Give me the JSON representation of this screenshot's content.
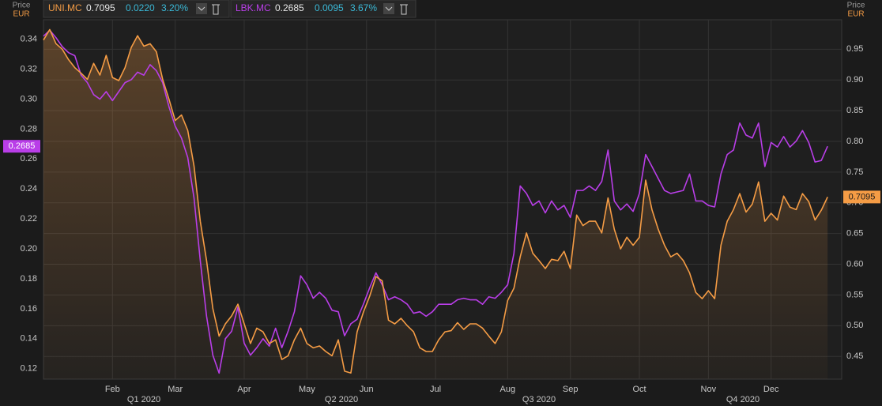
{
  "chart_data": {
    "type": "line",
    "y_axis_title": "Price",
    "y_axis_unit": "EUR",
    "y2_axis_title": "Price",
    "y2_axis_unit": "EUR",
    "x": [
      0,
      2,
      4,
      6,
      8,
      10,
      12,
      14,
      16,
      18,
      20,
      22,
      24,
      26,
      28,
      30,
      32,
      34,
      36,
      38,
      40,
      42,
      44,
      46,
      48,
      50,
      52,
      54,
      56,
      58,
      60,
      62,
      64,
      66,
      68,
      70,
      72,
      74,
      76,
      78,
      80,
      82,
      84,
      86,
      88,
      90,
      92,
      94,
      96,
      98,
      100,
      102,
      104,
      106,
      108,
      110,
      112,
      114,
      116,
      118,
      120,
      122,
      124,
      126,
      128,
      130,
      132,
      134,
      136,
      138,
      140,
      142,
      144,
      146,
      148,
      150,
      152,
      154,
      156,
      158,
      160,
      162,
      164,
      166,
      168,
      170,
      172,
      174,
      176,
      178,
      180,
      182,
      184,
      186,
      188,
      190,
      192,
      194,
      196,
      198,
      200,
      202,
      204,
      206,
      208,
      210,
      212,
      214,
      216,
      218,
      220,
      222,
      224,
      226,
      228,
      230,
      232,
      234,
      236,
      238,
      240,
      242,
      244,
      246,
      248,
      250
    ],
    "xlim": [
      0,
      254.5
    ],
    "xticks": [
      {
        "value": 22,
        "label": "Feb"
      },
      {
        "value": 42,
        "label": "Mar"
      },
      {
        "value": 64,
        "label": "Apr"
      },
      {
        "value": 84,
        "label": "May"
      },
      {
        "value": 103,
        "label": "Jun"
      },
      {
        "value": 125,
        "label": "Jul"
      },
      {
        "value": 148,
        "label": "Aug"
      },
      {
        "value": 168,
        "label": "Sep"
      },
      {
        "value": 190,
        "label": "Oct"
      },
      {
        "value": 212,
        "label": "Nov"
      },
      {
        "value": 232,
        "label": "Dec"
      }
    ],
    "quarter_labels": [
      {
        "value": 32,
        "label": "Q1 2020"
      },
      {
        "value": 95,
        "label": "Q2 2020"
      },
      {
        "value": 158,
        "label": "Q3 2020"
      },
      {
        "value": 223,
        "label": "Q4 2020"
      }
    ],
    "ylim": [
      0.113,
      0.353
    ],
    "yticks": [
      0.12,
      0.14,
      0.16,
      0.18,
      {
        "value": 0.2,
        "label": "0.20"
      },
      0.22,
      0.24,
      0.26,
      0.28,
      {
        "value": 0.3,
        "label": "0.30"
      },
      0.32,
      0.34
    ],
    "y2lim": [
      0.413,
      0.998
    ],
    "y2ticks": [
      0.45,
      {
        "value": 0.5,
        "label": "0.50"
      },
      0.55,
      {
        "value": 0.6,
        "label": "0.60"
      },
      0.65,
      {
        "value": 0.7,
        "label": "0.70"
      },
      0.75,
      {
        "value": 0.8,
        "label": "0.80"
      },
      0.85,
      {
        "value": 0.9,
        "label": "0.90"
      },
      0.95
    ],
    "grid": true,
    "series": [
      {
        "name": "UNI.MC",
        "color": "#f59c45",
        "axis": "y2",
        "area": true,
        "change": "0.0220",
        "change_pct": "3.20%",
        "values": [
          0.965,
          0.982,
          0.959,
          0.95,
          0.933,
          0.92,
          0.911,
          0.901,
          0.927,
          0.908,
          0.94,
          0.904,
          0.899,
          0.92,
          0.953,
          0.972,
          0.955,
          0.959,
          0.946,
          0.901,
          0.869,
          0.834,
          0.843,
          0.818,
          0.76,
          0.67,
          0.606,
          0.528,
          0.483,
          0.503,
          0.516,
          0.535,
          0.503,
          0.471,
          0.496,
          0.49,
          0.471,
          0.477,
          0.445,
          0.451,
          0.477,
          0.496,
          0.471,
          0.464,
          0.467,
          0.458,
          0.451,
          0.477,
          0.426,
          0.423,
          0.49,
          0.522,
          0.548,
          0.58,
          0.573,
          0.509,
          0.503,
          0.512,
          0.5,
          0.49,
          0.464,
          0.458,
          0.458,
          0.477,
          0.49,
          0.492,
          0.505,
          0.494,
          0.503,
          0.503,
          0.496,
          0.483,
          0.471,
          0.49,
          0.541,
          0.561,
          0.612,
          0.651,
          0.618,
          0.606,
          0.593,
          0.608,
          0.606,
          0.621,
          0.593,
          0.68,
          0.663,
          0.67,
          0.67,
          0.651,
          0.708,
          0.657,
          0.625,
          0.644,
          0.631,
          0.644,
          0.737,
          0.689,
          0.657,
          0.631,
          0.612,
          0.618,
          0.606,
          0.586,
          0.554,
          0.544,
          0.557,
          0.544,
          0.631,
          0.67,
          0.689,
          0.715,
          0.685,
          0.698,
          0.734,
          0.67,
          0.683,
          0.672,
          0.711,
          0.693,
          0.689,
          0.715,
          0.702,
          0.672,
          0.688,
          0.7095
        ]
      },
      {
        "name": "LBK.MC",
        "color": "#b93ee8",
        "axis": "y",
        "change": "0.0095",
        "change_pct": "3.67%",
        "values": [
          0.342,
          0.346,
          0.341,
          0.335,
          0.331,
          0.329,
          0.316,
          0.311,
          0.303,
          0.3,
          0.305,
          0.299,
          0.305,
          0.311,
          0.313,
          0.318,
          0.316,
          0.323,
          0.319,
          0.311,
          0.295,
          0.282,
          0.274,
          0.261,
          0.234,
          0.192,
          0.155,
          0.129,
          0.117,
          0.14,
          0.145,
          0.161,
          0.137,
          0.129,
          0.134,
          0.14,
          0.135,
          0.147,
          0.134,
          0.145,
          0.158,
          0.182,
          0.176,
          0.167,
          0.171,
          0.167,
          0.159,
          0.158,
          0.142,
          0.15,
          0.153,
          0.163,
          0.174,
          0.184,
          0.176,
          0.166,
          0.168,
          0.166,
          0.163,
          0.157,
          0.158,
          0.155,
          0.158,
          0.163,
          0.163,
          0.163,
          0.166,
          0.167,
          0.166,
          0.166,
          0.163,
          0.168,
          0.167,
          0.171,
          0.176,
          0.197,
          0.242,
          0.237,
          0.229,
          0.232,
          0.224,
          0.232,
          0.226,
          0.229,
          0.221,
          0.239,
          0.239,
          0.242,
          0.239,
          0.245,
          0.266,
          0.232,
          0.226,
          0.23,
          0.225,
          0.237,
          0.263,
          0.255,
          0.247,
          0.239,
          0.237,
          0.238,
          0.239,
          0.25,
          0.232,
          0.232,
          0.229,
          0.228,
          0.25,
          0.263,
          0.266,
          0.284,
          0.276,
          0.274,
          0.284,
          0.255,
          0.271,
          0.268,
          0.275,
          0.268,
          0.272,
          0.279,
          0.271,
          0.258,
          0.259,
          0.2685
        ]
      }
    ]
  }
}
